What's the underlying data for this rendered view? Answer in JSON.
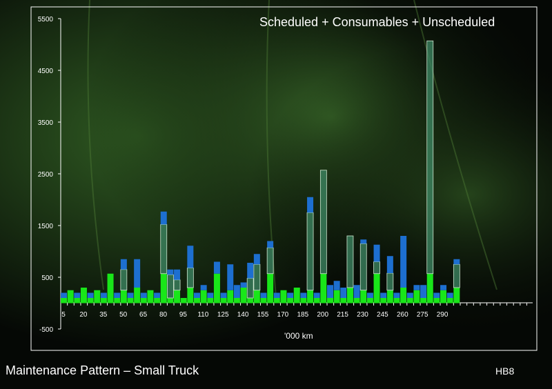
{
  "footer": {
    "title": "Maintenance Pattern – Small Truck",
    "code": "HB8"
  },
  "colors": {
    "background": "#000000",
    "scheduled": "#19e619",
    "consumables": "#3f8a66",
    "unscheduled": "#1d6fd0",
    "frame": "#ffffff"
  },
  "chart_data": {
    "type": "bar",
    "stacked": true,
    "title": "Scheduled + Consumables + Unscheduled",
    "xlabel": "'000 km",
    "ylabel": "",
    "ylim": [
      -500,
      5500
    ],
    "yticks": [
      -500,
      500,
      1500,
      2500,
      3500,
      4500,
      5500
    ],
    "grid": false,
    "x_tick_labels": [
      "5",
      "20",
      "35",
      "50",
      "65",
      "80",
      "95",
      "110",
      "125",
      "140",
      "155",
      "170",
      "185",
      "200",
      "215",
      "230",
      "245",
      "260",
      "275",
      "290"
    ],
    "categories": [
      "5",
      "10",
      "15",
      "20",
      "25",
      "30",
      "35",
      "40",
      "45",
      "50",
      "55",
      "60",
      "65",
      "70",
      "75",
      "80",
      "85",
      "90",
      "95",
      "100",
      "105",
      "110",
      "115",
      "120",
      "125",
      "130",
      "135",
      "140",
      "145",
      "150",
      "155",
      "160",
      "165",
      "170",
      "175",
      "180",
      "185",
      "190",
      "195",
      "200",
      "205",
      "210",
      "215",
      "220",
      "225",
      "230",
      "235",
      "240",
      "245",
      "250",
      "255",
      "260",
      "265",
      "270",
      "275",
      "280",
      "285",
      "290",
      "295",
      "300"
    ],
    "series": [
      {
        "values": [
          100,
          250,
          100,
          300,
          100,
          250,
          100,
          570,
          100,
          250,
          100,
          300,
          100,
          250,
          100,
          570,
          100,
          250,
          100,
          300,
          100,
          250,
          100,
          570,
          100,
          250,
          100,
          300,
          100,
          250,
          100,
          570,
          100,
          250,
          100,
          300,
          100,
          250,
          100,
          570,
          100,
          250,
          100,
          300,
          100,
          250,
          100,
          570,
          100,
          250,
          100,
          300,
          100,
          250,
          100,
          570,
          100,
          250,
          100,
          300
        ]
      },
      {
        "values": [
          0,
          0,
          0,
          0,
          0,
          0,
          0,
          0,
          0,
          400,
          0,
          0,
          0,
          0,
          0,
          950,
          450,
          200,
          0,
          380,
          0,
          0,
          0,
          0,
          0,
          0,
          0,
          0,
          380,
          500,
          0,
          500,
          0,
          0,
          0,
          0,
          0,
          1500,
          0,
          2000,
          0,
          0,
          0,
          1000,
          0,
          900,
          0,
          230,
          0,
          330,
          0,
          0,
          0,
          0,
          0,
          4500,
          0,
          0,
          0,
          450
        ]
      },
      {
        "values": [
          100,
          0,
          100,
          0,
          100,
          0,
          100,
          0,
          100,
          200,
          100,
          550,
          100,
          0,
          100,
          250,
          100,
          200,
          0,
          430,
          100,
          100,
          100,
          230,
          100,
          500,
          250,
          100,
          300,
          200,
          100,
          130,
          100,
          0,
          100,
          0,
          100,
          300,
          100,
          0,
          250,
          180,
          200,
          0,
          250,
          80,
          100,
          330,
          100,
          330,
          100,
          1000,
          100,
          100,
          250,
          0,
          100,
          100,
          100,
          100
        ]
      }
    ]
  }
}
